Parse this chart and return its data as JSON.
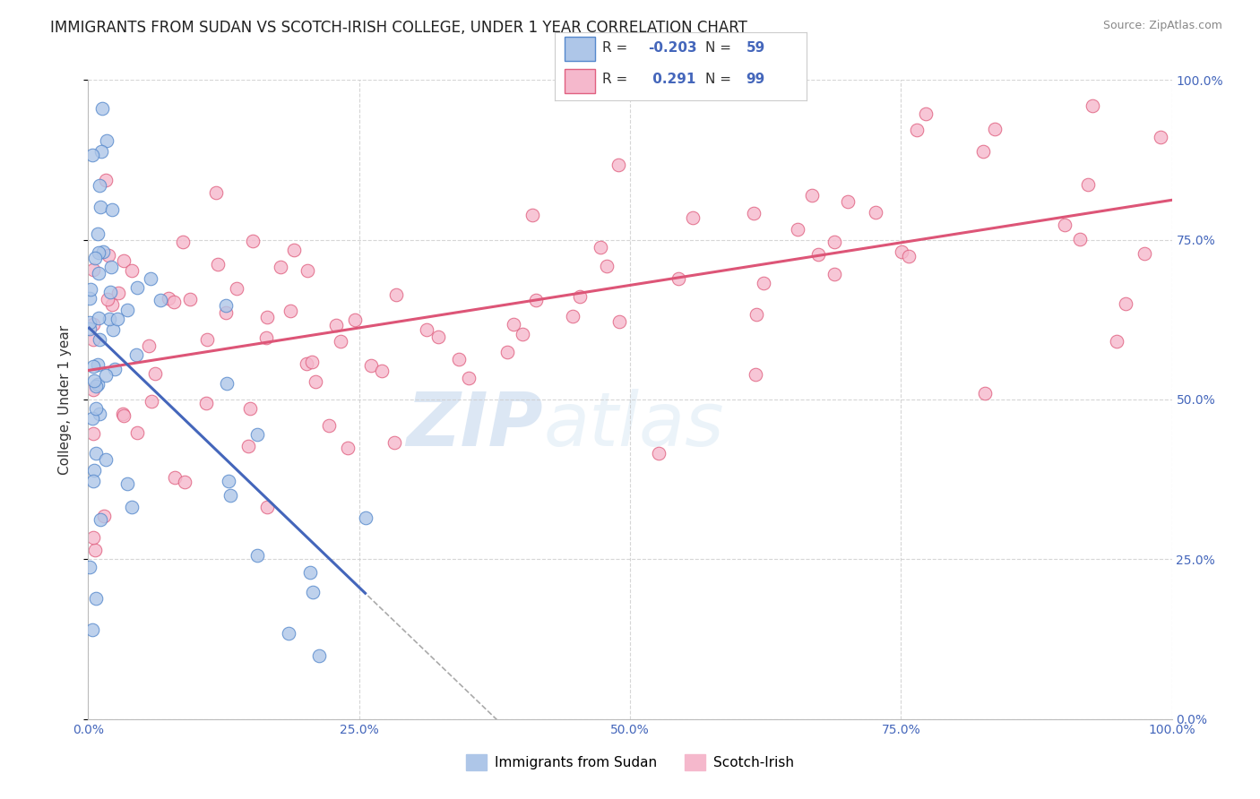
{
  "title": "IMMIGRANTS FROM SUDAN VS SCOTCH-IRISH COLLEGE, UNDER 1 YEAR CORRELATION CHART",
  "source_text": "Source: ZipAtlas.com",
  "ylabel": "College, Under 1 year",
  "r_blue": -0.203,
  "n_blue": 59,
  "r_pink": 0.291,
  "n_pink": 99,
  "blue_color": "#aec6e8",
  "blue_edge": "#5588cc",
  "pink_color": "#f5b8cc",
  "pink_edge": "#e06080",
  "blue_line_color": "#4466bb",
  "pink_line_color": "#dd5577",
  "legend_labels": [
    "Immigrants from Sudan",
    "Scotch-Irish"
  ],
  "xmin": 0.0,
  "xmax": 100.0,
  "ymin": 0.0,
  "ymax": 100.0,
  "grid_color": "#cccccc",
  "bg_color": "#ffffff",
  "title_fontsize": 12,
  "axis_label_fontsize": 11,
  "tick_fontsize": 10,
  "watermark_color": "#d0e4f4",
  "watermark_text": "ZIPatlas"
}
